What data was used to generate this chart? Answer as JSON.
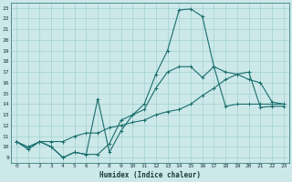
{
  "xlabel": "Humidex (Indice chaleur)",
  "bg_color": "#cce8e8",
  "grid_color": "#99cccc",
  "line_color": "#1a6e6e",
  "xlim": [
    -0.5,
    23.5
  ],
  "ylim": [
    8.5,
    23.5
  ],
  "xticks": [
    0,
    1,
    2,
    3,
    4,
    5,
    6,
    7,
    8,
    9,
    10,
    11,
    12,
    13,
    14,
    15,
    16,
    17,
    18,
    19,
    20,
    21,
    22,
    23
  ],
  "yticks": [
    9,
    10,
    11,
    12,
    13,
    14,
    15,
    16,
    17,
    18,
    19,
    20,
    21,
    22,
    23
  ],
  "line1_x": [
    0,
    1,
    2,
    3,
    4,
    5,
    6,
    7,
    8,
    9,
    10,
    11,
    12,
    13,
    14,
    15,
    16,
    17,
    18,
    19,
    20,
    21,
    22,
    23
  ],
  "line1_y": [
    10.5,
    9.8,
    10.5,
    10.0,
    9.0,
    9.5,
    9.3,
    9.3,
    10.3,
    12.5,
    13.0,
    14.0,
    16.8,
    19.0,
    22.8,
    22.9,
    22.2,
    17.5,
    17.0,
    16.8,
    16.3,
    16.0,
    14.2,
    14.0
  ],
  "line2_x": [
    0,
    1,
    2,
    3,
    4,
    5,
    6,
    7,
    8,
    9,
    10,
    11,
    12,
    13,
    14,
    15,
    16,
    17,
    18,
    19,
    20,
    21,
    22,
    23
  ],
  "line2_y": [
    10.5,
    9.8,
    10.5,
    10.0,
    9.0,
    9.5,
    9.3,
    14.5,
    9.5,
    11.5,
    13.0,
    13.5,
    15.5,
    17.0,
    17.5,
    17.5,
    16.5,
    17.5,
    13.8,
    14.0,
    14.0,
    14.0,
    14.0,
    14.0
  ],
  "line3_x": [
    0,
    1,
    2,
    3,
    4,
    5,
    6,
    7,
    8,
    9,
    10,
    11,
    12,
    13,
    14,
    15,
    16,
    17,
    18,
    19,
    20,
    21,
    22,
    23
  ],
  "line3_y": [
    10.5,
    10.0,
    10.5,
    10.5,
    10.5,
    11.0,
    11.3,
    11.3,
    11.8,
    12.0,
    12.3,
    12.5,
    13.0,
    13.3,
    13.5,
    14.0,
    14.8,
    15.5,
    16.3,
    16.8,
    17.0,
    13.7,
    13.8,
    13.8
  ],
  "markersize": 1.8,
  "linewidth": 0.8
}
